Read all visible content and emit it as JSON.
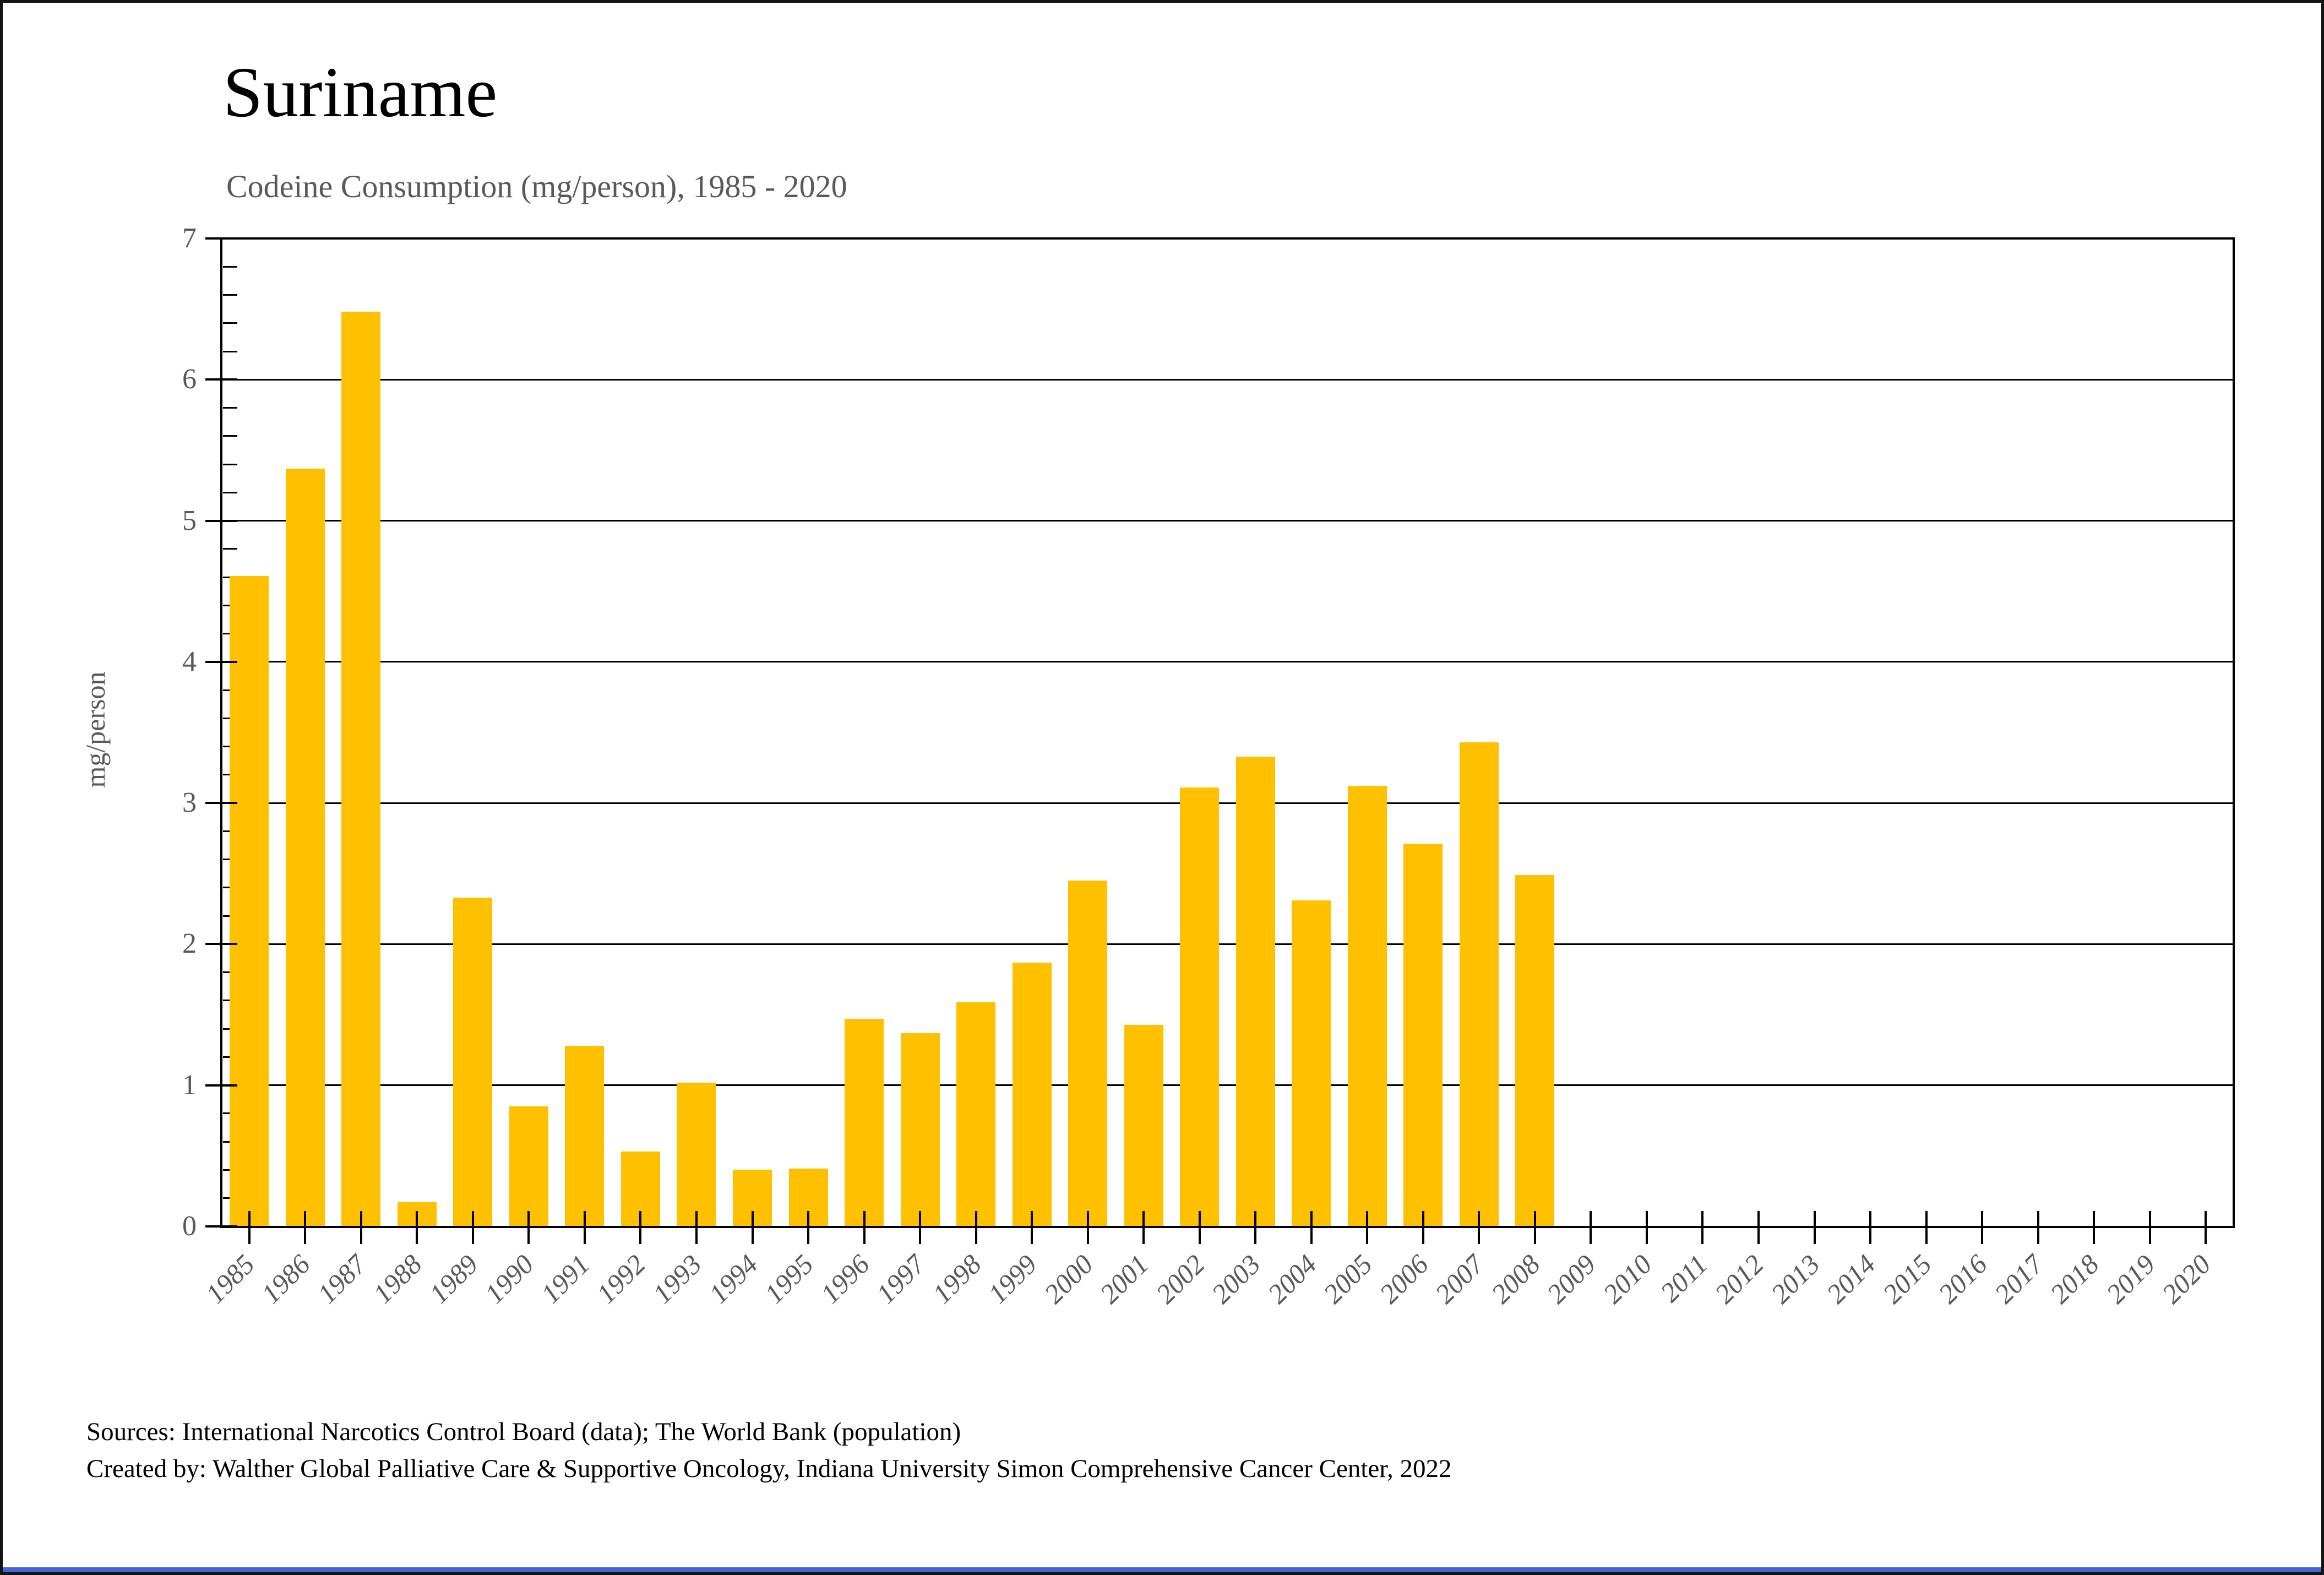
{
  "header": {
    "title": "Suriname",
    "subtitle": "Codeine Consumption (mg/person), 1985 - 2020"
  },
  "footer": {
    "sources": "Sources: International Narcotics Control Board (data); The World Bank (population)",
    "created_by": "Created by: Walther Global Palliative Care & Supportive Oncology, Indiana University Simon Comprehensive Cancer Center, 2022"
  },
  "window": {
    "bottom_accent_color": "#4664D8"
  },
  "chart_data": {
    "type": "bar",
    "title": "Suriname",
    "subtitle": "Codeine Consumption (mg/person), 1985 - 2020",
    "xlabel": "",
    "ylabel": "mg/person",
    "ylim": [
      0,
      7
    ],
    "ytick_interval": 1,
    "y_minor_tick_interval": 0.2,
    "grid": "horizontal",
    "legend": "none",
    "bar_color": "#FFC000",
    "axis_color": "#000000",
    "tick_label_color": "#595959",
    "categories": [
      1985,
      1986,
      1987,
      1988,
      1989,
      1990,
      1991,
      1992,
      1993,
      1994,
      1995,
      1996,
      1997,
      1998,
      1999,
      2000,
      2001,
      2002,
      2003,
      2004,
      2005,
      2006,
      2007,
      2008,
      2009,
      2010,
      2011,
      2012,
      2013,
      2014,
      2015,
      2016,
      2017,
      2018,
      2019,
      2020
    ],
    "values": [
      4.61,
      5.37,
      6.48,
      0.17,
      2.33,
      0.85,
      1.28,
      0.53,
      1.02,
      0.4,
      0.41,
      1.47,
      1.37,
      1.59,
      1.87,
      2.45,
      1.43,
      3.11,
      3.33,
      2.31,
      3.12,
      2.71,
      3.43,
      2.49,
      0,
      0,
      0,
      0,
      0,
      0,
      0,
      0,
      0,
      0,
      0,
      0
    ]
  }
}
